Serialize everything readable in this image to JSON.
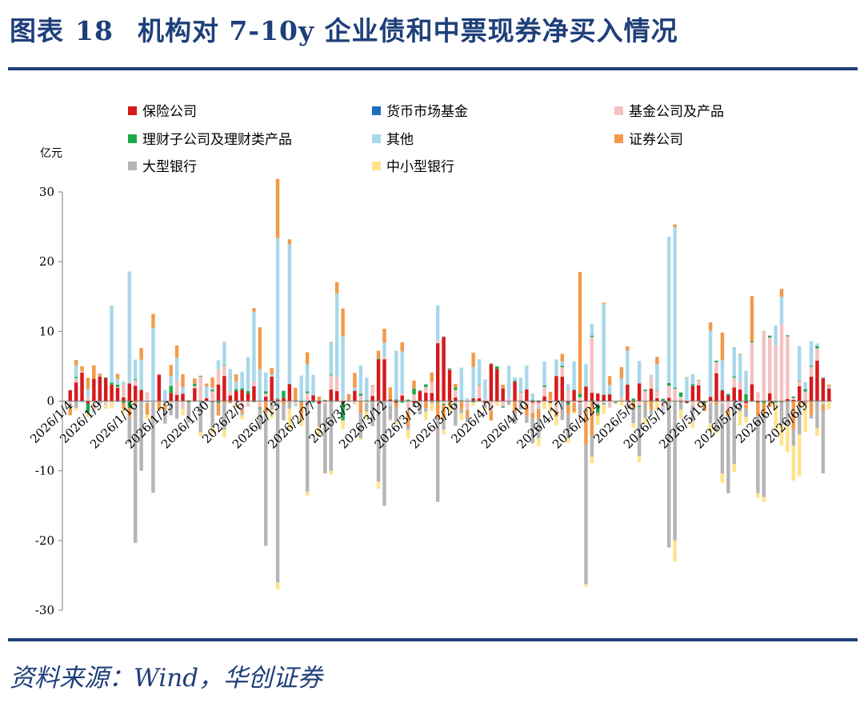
{
  "figure": {
    "label": "图表",
    "number": "18",
    "title": "机构对 7-10y 企业债和中票现券净买入情况"
  },
  "source": "资料来源：Wind，华创证券",
  "colors": {
    "title": "#1f3f7a",
    "rule": "#1f3f7a"
  },
  "chart_data": {
    "type": "bar",
    "stacked": true,
    "ylabel": "亿元",
    "ylim": [
      -30,
      30
    ],
    "yticks": [
      -30,
      -20,
      -10,
      0,
      10,
      20,
      30
    ],
    "grid": false,
    "legend_position": "top",
    "x_tick_labels": [
      "2026/1/4",
      "2026/1/9",
      "2026/1/16",
      "2026/1/23",
      "2026/1/30",
      "2026/2/6",
      "2026/2/13",
      "2026/2/27",
      "2026/3/5",
      "2026/3/12",
      "2026/3/19",
      "2026/3/26",
      "2026/4/2",
      "2026/4/10",
      "2026/4/17",
      "2026/4/24",
      "2026/5/6",
      "2026/5/12",
      "2026/5/19",
      "2026/5/26",
      "2026/6/2",
      "2026/6/9"
    ],
    "x_tick_positions": [
      0,
      5,
      11,
      17,
      23,
      29,
      35,
      41,
      47,
      53,
      59,
      65,
      71,
      77,
      83,
      89,
      95,
      101,
      107,
      113,
      119,
      124
    ],
    "n_days": 129,
    "series": [
      {
        "name": "保险公司",
        "color": "#d7191c",
        "spikes": [
          [
            62,
            8.3
          ],
          [
            63,
            9.2
          ],
          [
            64,
            4.5
          ],
          [
            52,
            6
          ],
          [
            53,
            6
          ],
          [
            34,
            3.5
          ],
          [
            26,
            3.6
          ],
          [
            2,
            4.1
          ],
          [
            109,
            4
          ],
          [
            110,
            1.5
          ],
          [
            126,
            5.8
          ],
          [
            127,
            3.3
          ],
          [
            125,
            3.5
          ],
          [
            71,
            5.3
          ],
          [
            72,
            4.6
          ],
          [
            82,
            3.6
          ],
          [
            83,
            3.5
          ],
          [
            15,
            3.8
          ],
          [
            5,
            3.5
          ],
          [
            6,
            3.3
          ],
          [
            4,
            3.2
          ]
        ]
      },
      {
        "name": "货币市场基金",
        "color": "#1f6fc0",
        "spikes": []
      },
      {
        "name": "基金公司及产品",
        "color": "#f4c2c2",
        "spikes": [
          [
            117,
            10
          ],
          [
            118,
            8
          ],
          [
            119,
            8
          ],
          [
            120,
            11
          ],
          [
            121,
            9
          ],
          [
            115,
            6
          ],
          [
            88,
            8
          ],
          [
            22,
            3.5
          ]
        ]
      },
      {
        "name": "理财子公司及理财类产品",
        "color": "#1aab4a",
        "spikes": [
          [
            3,
            -1.3
          ],
          [
            10,
            -1
          ],
          [
            17,
            1
          ],
          [
            36,
            1
          ],
          [
            58,
            0.8
          ],
          [
            86,
            0.5
          ],
          [
            103,
            0.6
          ],
          [
            114,
            1
          ],
          [
            46,
            -2.5
          ],
          [
            89,
            -1.2
          ]
        ]
      },
      {
        "name": "其他",
        "color": "#a8d8ea",
        "spikes": [
          [
            35,
            23
          ],
          [
            37,
            20
          ],
          [
            101,
            21
          ],
          [
            102,
            23
          ],
          [
            10,
            16
          ],
          [
            14,
            10.5
          ],
          [
            90,
            13
          ],
          [
            108,
            9.5
          ],
          [
            129,
            11
          ],
          [
            56,
            6
          ],
          [
            62,
            5
          ],
          [
            45,
            12
          ],
          [
            46,
            9
          ],
          [
            7,
            11
          ],
          [
            55,
            7
          ],
          [
            31,
            10
          ]
        ]
      },
      {
        "name": "证券公司",
        "color": "#f39a4a",
        "spikes": [
          [
            32,
            6
          ],
          [
            35,
            8.5
          ],
          [
            86,
            17.5
          ],
          [
            87,
            -5
          ],
          [
            131,
            6
          ],
          [
            53,
            2
          ],
          [
            46,
            4
          ],
          [
            110,
            4
          ],
          [
            115,
            6.5
          ],
          [
            122,
            -4
          ],
          [
            125,
            -2
          ],
          [
            88,
            -5
          ]
        ]
      },
      {
        "name": "大型银行",
        "color": "#b5b5b5",
        "spikes": [
          [
            35,
            -26
          ],
          [
            33,
            -19
          ],
          [
            101,
            -21
          ],
          [
            102,
            -20
          ],
          [
            87,
            -20
          ],
          [
            11,
            -20
          ],
          [
            12,
            -10
          ],
          [
            14,
            -13
          ],
          [
            40,
            -13
          ],
          [
            43,
            -10
          ],
          [
            44,
            -10
          ],
          [
            52,
            -11
          ],
          [
            53,
            -15
          ],
          [
            127,
            -9
          ],
          [
            130,
            -15
          ],
          [
            62,
            -12
          ],
          [
            96,
            -7
          ],
          [
            110,
            -10
          ],
          [
            111,
            -11
          ],
          [
            116,
            -11
          ],
          [
            117,
            -12
          ],
          [
            112,
            -9
          ]
        ]
      },
      {
        "name": "中小型银行",
        "color": "#ffe38a",
        "spikes": [
          [
            35,
            -1
          ],
          [
            37,
            -3
          ],
          [
            102,
            -3
          ],
          [
            119,
            -4
          ],
          [
            120,
            -3
          ],
          [
            121,
            -4
          ],
          [
            122,
            -5
          ],
          [
            123,
            -6
          ],
          [
            124,
            -4
          ],
          [
            113,
            -2
          ],
          [
            88,
            -1
          ]
        ]
      }
    ]
  }
}
